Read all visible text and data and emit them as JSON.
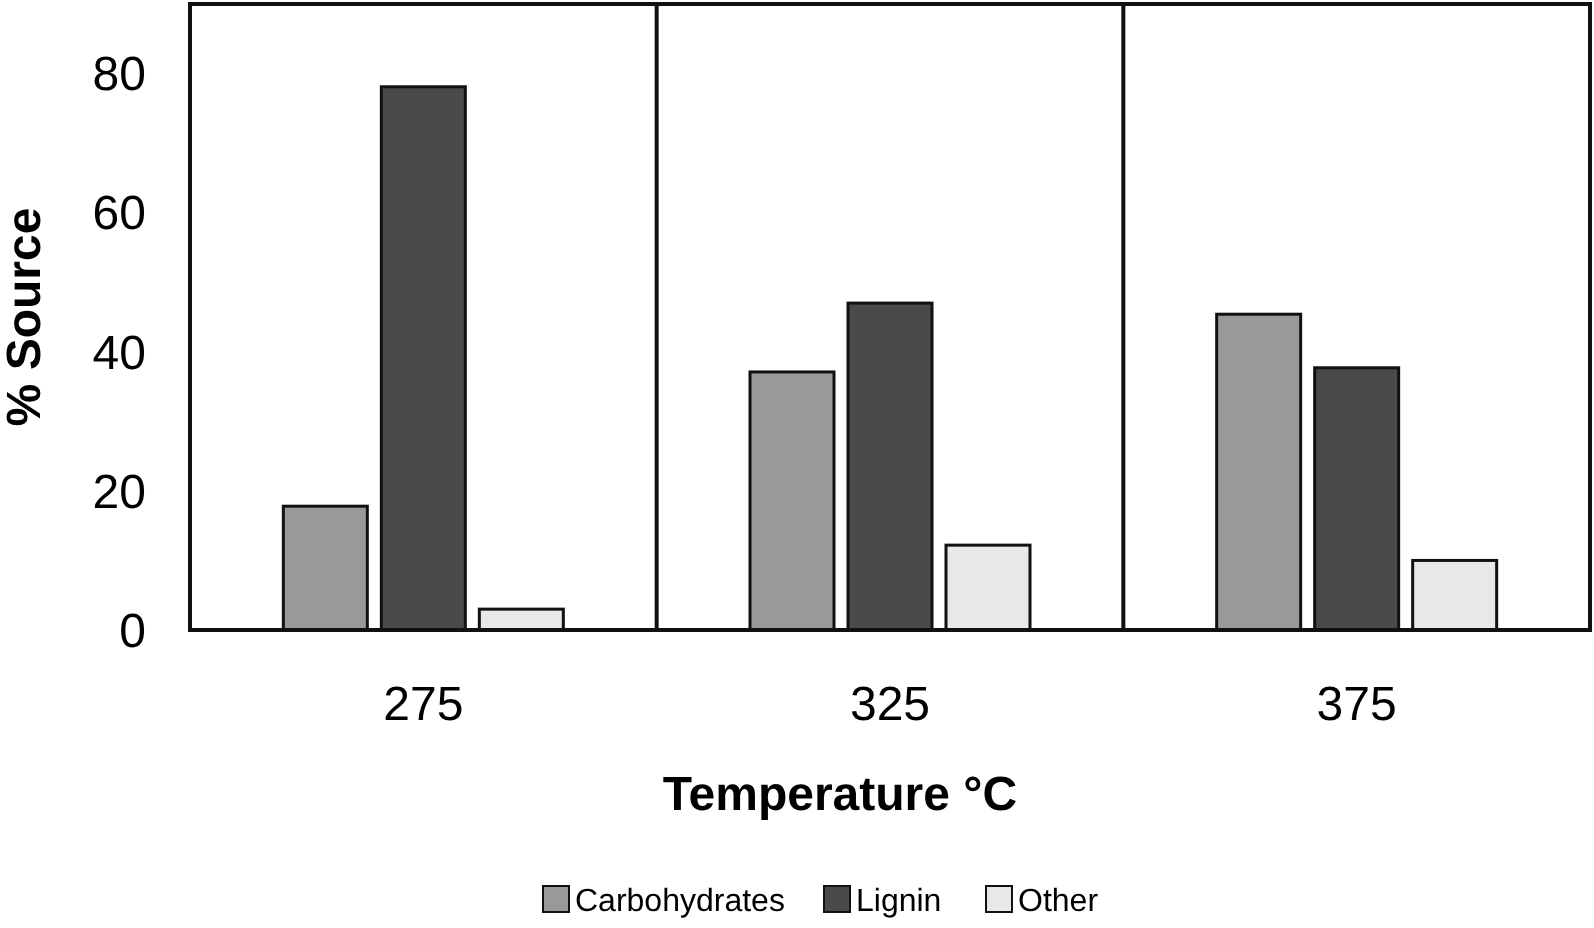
{
  "chart_data": {
    "type": "bar",
    "xlabel": "Temperature °C",
    "ylabel": "% Source",
    "categories": [
      "275",
      "325",
      "375"
    ],
    "series": [
      {
        "name": "Carbohydrates",
        "color": "#999999",
        "values": [
          17.8,
          37.1,
          45.4
        ]
      },
      {
        "name": "Lignin",
        "color": "#4a4a4a",
        "values": [
          78.1,
          47.0,
          37.7
        ]
      },
      {
        "name": "Other",
        "color": "#e8e8e8",
        "values": [
          3.0,
          12.2,
          10.0
        ]
      }
    ],
    "ylim": [
      0,
      90
    ],
    "yticks": [
      0,
      20,
      40,
      60,
      80
    ],
    "grid": false,
    "legend": "bottom"
  }
}
